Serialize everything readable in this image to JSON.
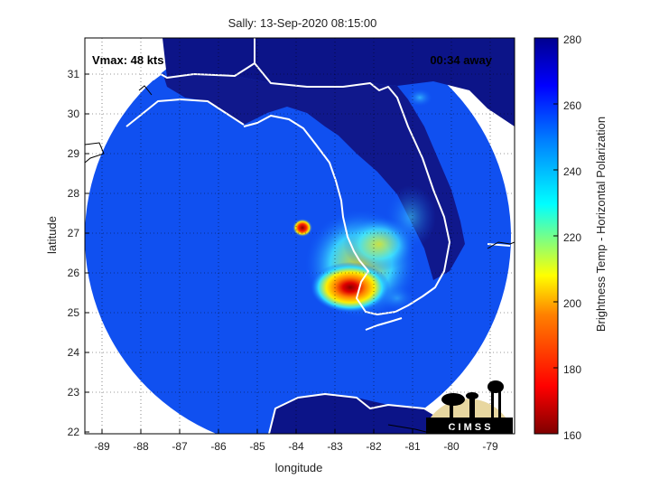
{
  "title": "Sally: 13-Sep-2020 08:15:00",
  "overlay": {
    "vmax": "Vmax: 48 kts",
    "time_away": "00:34 away"
  },
  "axes": {
    "xlabel": "longitude",
    "ylabel": "latitude",
    "x_ticks": [
      "-89",
      "-88",
      "-87",
      "-86",
      "-85",
      "-84",
      "-83",
      "-82",
      "-81",
      "-80",
      "-79"
    ],
    "y_ticks": [
      "22",
      "23",
      "24",
      "25",
      "26",
      "27",
      "28",
      "29",
      "30",
      "31"
    ]
  },
  "colorbar": {
    "label": "Brightness Temp - Horizontal Polarization",
    "ticks": [
      "160",
      "180",
      "200",
      "220",
      "240",
      "260",
      "280"
    ],
    "colors": [
      "#7f0000",
      "#ff0000",
      "#ff8000",
      "#ffff00",
      "#00ffff",
      "#0080ff",
      "#0000ff",
      "#00008f"
    ]
  },
  "logo": {
    "text": "C I M S S"
  }
}
